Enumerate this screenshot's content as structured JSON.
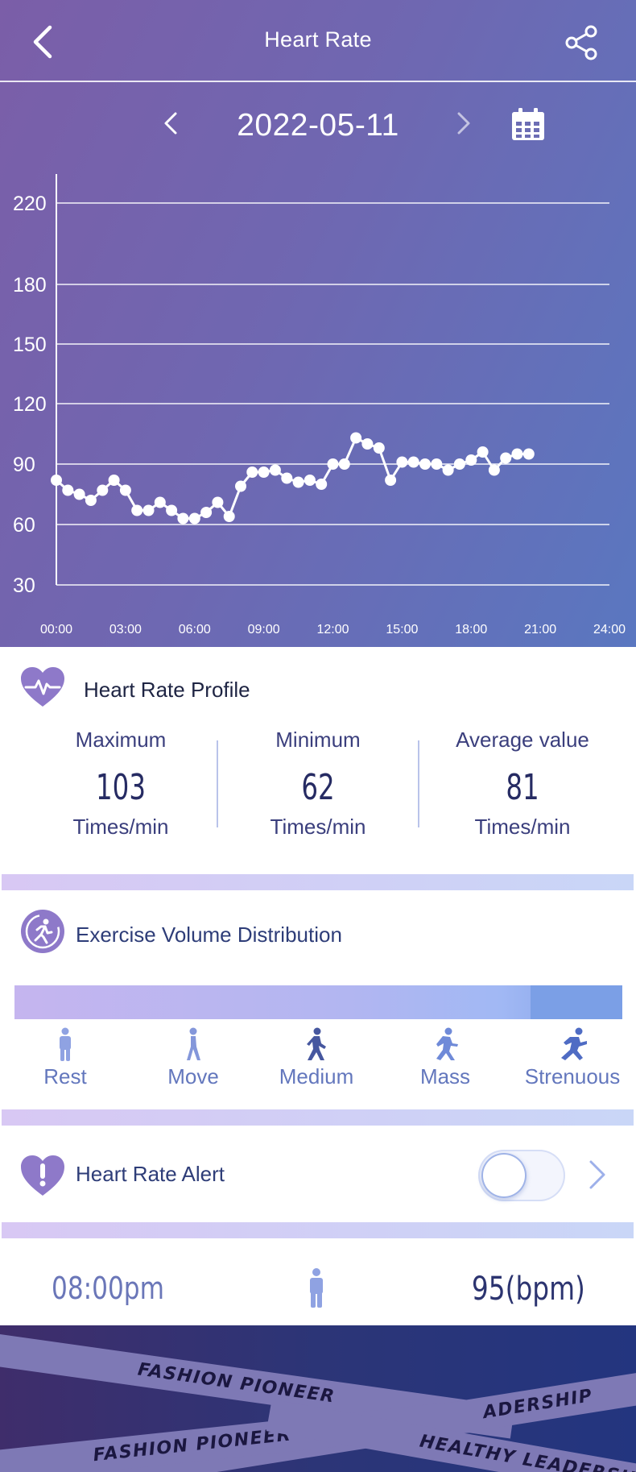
{
  "header": {
    "title": "Heart Rate",
    "date": "2022-05-11"
  },
  "chart_data": {
    "type": "line",
    "title": "",
    "xlabel": "",
    "ylabel": "",
    "x_tick_labels": [
      "00:00",
      "03:00",
      "06:00",
      "09:00",
      "12:00",
      "15:00",
      "18:00",
      "21:00",
      "24:00"
    ],
    "y_tick_labels": [
      "30",
      "60",
      "90",
      "120",
      "150",
      "180",
      "220"
    ],
    "xlim": [
      0,
      24
    ],
    "y_ticks": [
      30,
      60,
      90,
      120,
      150,
      180,
      220
    ],
    "grid": true,
    "legend": "none",
    "series": [
      {
        "x": [
          0.0,
          0.5,
          1.0,
          1.5,
          2.0,
          2.5,
          3.0,
          3.5,
          4.0,
          4.5,
          5.0,
          5.5,
          6.0,
          6.5,
          7.0,
          7.5,
          8.0,
          8.5,
          9.0,
          9.5,
          10.0,
          10.5,
          11.0,
          11.5,
          12.0,
          12.5,
          13.0,
          13.5,
          14.0,
          14.5,
          15.0,
          15.5,
          16.0,
          16.5,
          17.0,
          17.5,
          18.0,
          18.5,
          19.0,
          19.5,
          20.0,
          20.5
        ],
        "y": [
          82,
          77,
          75,
          72,
          77,
          82,
          77,
          67,
          67,
          71,
          67,
          63,
          63,
          66,
          71,
          64,
          79,
          86,
          86,
          87,
          83,
          81,
          82,
          80,
          90,
          90,
          103,
          100,
          98,
          82,
          91,
          91,
          90,
          90,
          87,
          90,
          92,
          96,
          87,
          93,
          95,
          95
        ]
      }
    ]
  },
  "profile": {
    "title": "Heart Rate Profile",
    "stats": [
      {
        "label": "Maximum",
        "value": "103",
        "unit": "Times/min"
      },
      {
        "label": "Minimum",
        "value": "62",
        "unit": "Times/min"
      },
      {
        "label": "Average value",
        "value": "81",
        "unit": "Times/min"
      }
    ]
  },
  "exercise": {
    "title": "Exercise Volume Distribution",
    "levels": [
      "Rest",
      "Move",
      "Medium",
      "Mass",
      "Strenuous"
    ]
  },
  "alert": {
    "title": "Heart Rate Alert",
    "enabled": false
  },
  "record": {
    "time": "08:00pm",
    "bpm": "95(bpm)"
  },
  "banner": {
    "tape1": "FASHION PIONEER",
    "tape2": "FASHION PIONEER",
    "tape3": "HEALTHY LEADERSHIP",
    "tape4": "HEALTHY LEADERSHIP"
  },
  "colors": {
    "accent": "#7b8fd9",
    "header_gradient_start": "#7b5ea8",
    "header_gradient_end": "#5a77c0",
    "icon_purple": "#8e79c9"
  },
  "icons": {
    "back": "chevron-left-icon",
    "share": "share-icon",
    "calendar": "calendar-icon",
    "profile": "heart-pulse-icon",
    "exercise": "running-circle-icon",
    "alert": "heart-exclamation-icon"
  }
}
